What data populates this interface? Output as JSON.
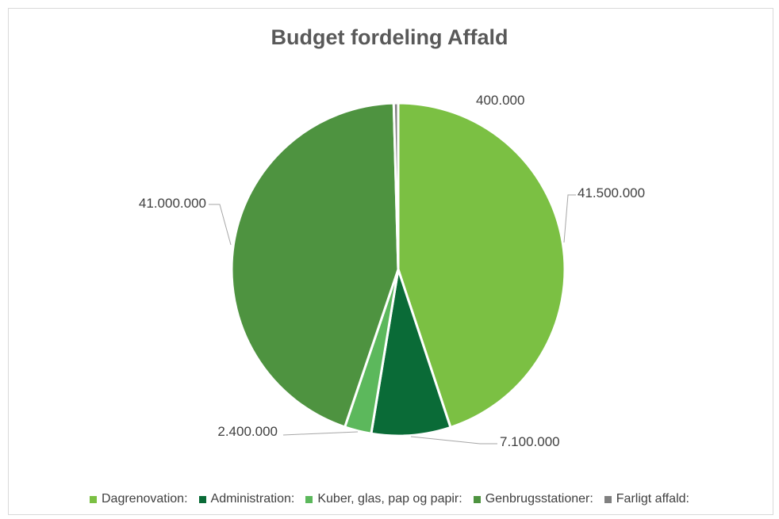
{
  "chart_data": {
    "type": "pie",
    "title": "Budget fordeling Affald",
    "legend_position": "bottom",
    "categories": [
      "Dagrenovation:",
      "Administration:",
      "Kuber, glas, pap og papir:",
      "Genbrugsstationer:",
      "Farligt affald:"
    ],
    "values": [
      41500000,
      7100000,
      2400000,
      41000000,
      400000
    ],
    "value_labels": [
      "41.500.000",
      "7.100.000",
      "2.400.000",
      "41.000.000",
      "400.000"
    ],
    "colors": [
      "#7bc043",
      "#0a6b37",
      "#5cb85c",
      "#4e9340",
      "#808080"
    ]
  }
}
